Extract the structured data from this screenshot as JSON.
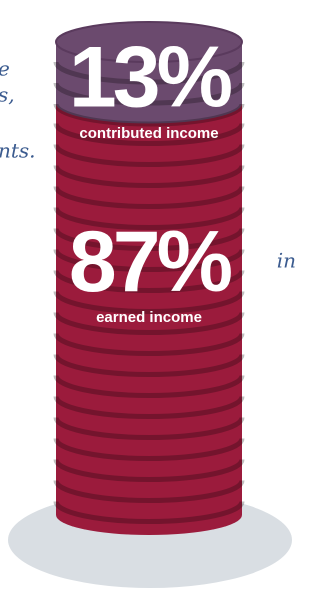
{
  "chart_data": {
    "type": "stack",
    "categories": [
      "contributed income",
      "earned income"
    ],
    "values": [
      13,
      87
    ],
    "value_labels": [
      "13%",
      "87%"
    ],
    "colors": [
      "#6b4a6e",
      "#9b1b3c"
    ],
    "annotations": [
      "e",
      "s,",
      "nts.",
      "in"
    ]
  }
}
